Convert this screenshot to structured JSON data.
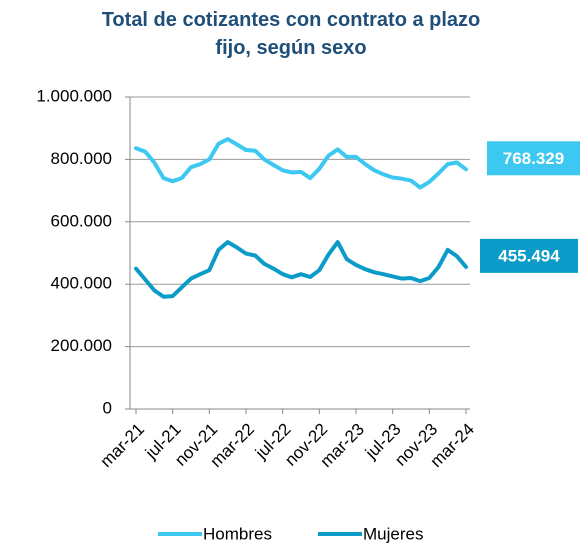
{
  "chart_data": {
    "type": "line",
    "title": "Total de cotizantes con contrato a plazo fijo, según sexo",
    "categories": [
      "mar-21",
      null,
      null,
      null,
      "jul-21",
      null,
      null,
      null,
      "nov-21",
      null,
      null,
      null,
      "mar-22",
      null,
      null,
      null,
      "jul-22",
      null,
      null,
      null,
      "nov-22",
      null,
      null,
      null,
      "mar-23",
      null,
      null,
      null,
      "jul-23",
      null,
      null,
      null,
      "nov-23",
      null,
      null,
      null,
      "mar-24"
    ],
    "series": [
      {
        "name": "Hombres",
        "color": "#3cc8f0",
        "values": [
          836000,
          825000,
          790000,
          740000,
          730000,
          740000,
          775000,
          785000,
          800000,
          850000,
          865000,
          848000,
          830000,
          828000,
          800000,
          782000,
          765000,
          758000,
          760000,
          740000,
          770000,
          812000,
          832000,
          808000,
          808000,
          785000,
          765000,
          752000,
          742000,
          738000,
          732000,
          710000,
          728000,
          755000,
          785000,
          790000,
          768329
        ],
        "value_labels": [
          null,
          null,
          null,
          null,
          null,
          null,
          null,
          null,
          null,
          null,
          null,
          null,
          null,
          null,
          null,
          null,
          null,
          null,
          null,
          null,
          null,
          null,
          null,
          null,
          null,
          null,
          null,
          null,
          null,
          null,
          null,
          null,
          null,
          null,
          null,
          null,
          "768.329"
        ]
      },
      {
        "name": "Mujeres",
        "color": "#0a9bc8",
        "values": [
          450000,
          415000,
          380000,
          360000,
          362000,
          390000,
          418000,
          432000,
          445000,
          510000,
          535000,
          518000,
          498000,
          492000,
          465000,
          450000,
          432000,
          422000,
          432000,
          423000,
          445000,
          495000,
          535000,
          480000,
          462000,
          448000,
          438000,
          432000,
          425000,
          418000,
          420000,
          410000,
          420000,
          455000,
          510000,
          490000,
          455494
        ],
        "value_labels": [
          null,
          null,
          null,
          null,
          null,
          null,
          null,
          null,
          null,
          null,
          null,
          null,
          null,
          null,
          null,
          null,
          null,
          null,
          null,
          null,
          null,
          null,
          null,
          null,
          null,
          null,
          null,
          null,
          null,
          null,
          null,
          null,
          null,
          null,
          null,
          null,
          "455.494"
        ]
      }
    ],
    "ylim": [
      0,
      1000000
    ],
    "yticks": [
      0,
      {
        "value": 200000,
        "label": "200.000"
      },
      {
        "value": 400000,
        "label": "400.000"
      },
      {
        "value": 600000,
        "label": "600.000"
      },
      {
        "value": 800000,
        "label": "800.000"
      },
      {
        "value": 1000000,
        "label": "1.000.000"
      }
    ],
    "grid": true,
    "legend": "bottom"
  }
}
